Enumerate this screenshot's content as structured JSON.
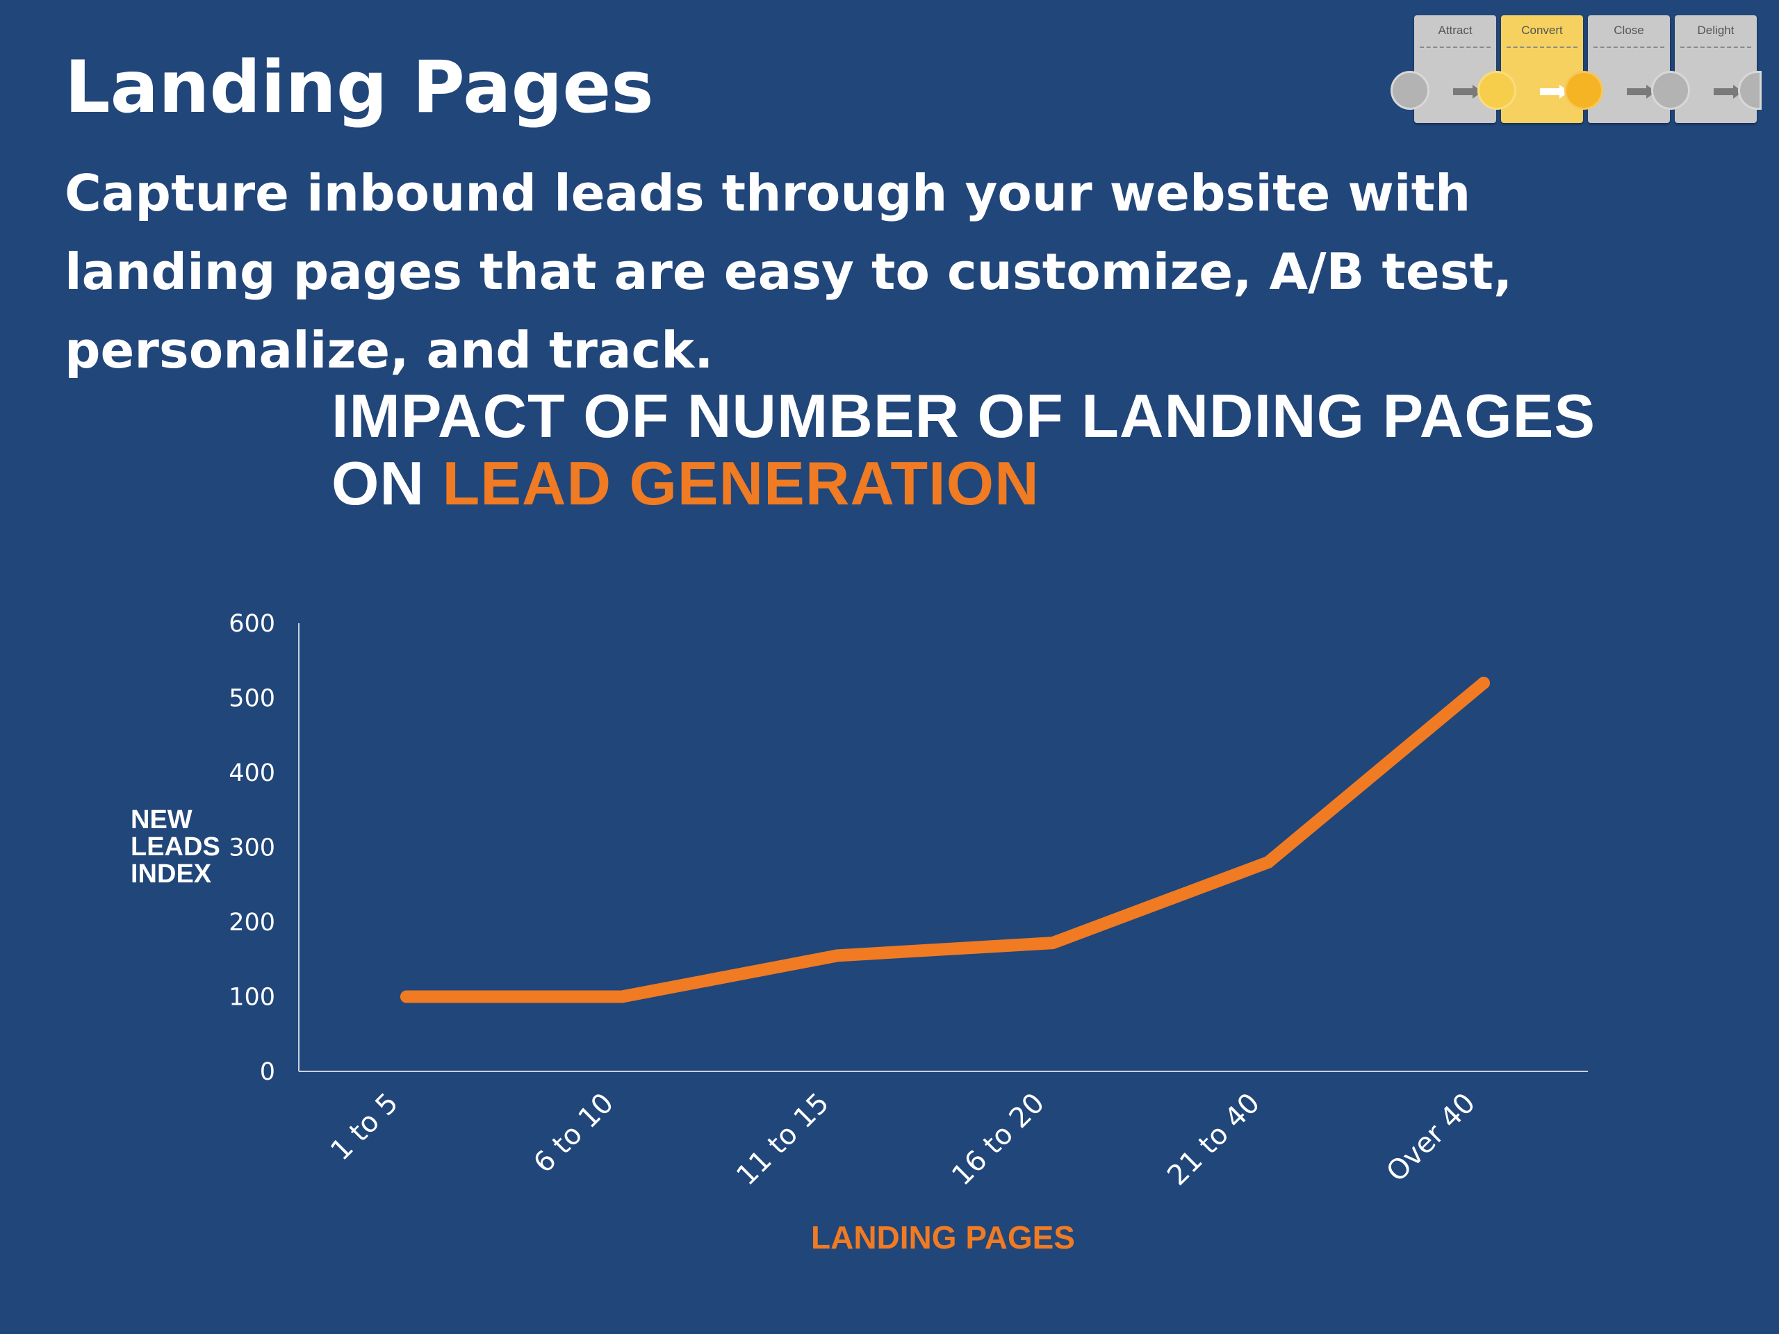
{
  "slide": {
    "title": "Landing Pages",
    "subtitle": "Capture inbound leads through your website with landing pages that are easy to customize, A/B test, personalize, and track."
  },
  "stages": {
    "items": [
      {
        "label": "Attract",
        "active": false
      },
      {
        "label": "Convert",
        "active": true
      },
      {
        "label": "Close",
        "active": false
      },
      {
        "label": "Delight",
        "active": false
      }
    ]
  },
  "chart_heading": {
    "line1": "IMPACT OF NUMBER OF LANDING PAGES",
    "line2_prefix": "ON",
    "line2_accent": "LEAD GENERATION"
  },
  "colors": {
    "background": "#21467a",
    "accent": "#f07b22",
    "text": "#ffffff",
    "axis": "#c8d2e2"
  },
  "chart_data": {
    "type": "line",
    "categories": [
      "1 to 5",
      "6 to 10",
      "11 to 15",
      "16 to 20",
      "21 to 40",
      "Over 40"
    ],
    "series": [
      {
        "values": [
          100,
          100,
          155,
          172,
          280,
          520
        ]
      }
    ],
    "ylabel": "NEW LEADS INDEX",
    "xlabel": "LANDING PAGES",
    "ylim": [
      0,
      600
    ],
    "yticks": [
      0,
      100,
      200,
      300,
      400,
      500,
      600
    ],
    "grid": false
  }
}
